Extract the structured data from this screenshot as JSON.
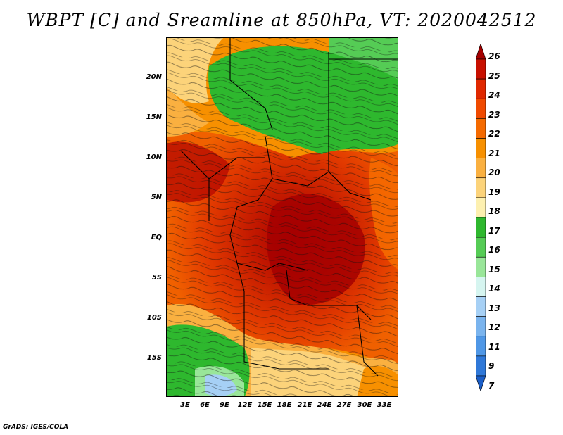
{
  "title": "WBPT [C] and Sreamline at 850hPa, VT: 2020042512",
  "credit": "GrADS: IGES/COLA",
  "lat_ticks": [
    "20N",
    "15N",
    "10N",
    "5N",
    "EQ",
    "5S",
    "10S",
    "15S"
  ],
  "lon_ticks": [
    "3E",
    "6E",
    "9E",
    "12E",
    "15E",
    "18E",
    "21E",
    "24E",
    "27E",
    "30E",
    "33E"
  ],
  "colorbar": {
    "levels": [
      "26",
      "25",
      "24",
      "23",
      "22",
      "21",
      "20",
      "19",
      "18",
      "17",
      "16",
      "15",
      "14",
      "13",
      "12",
      "11",
      "9",
      "7"
    ],
    "colors": [
      "#a50000",
      "#c81000",
      "#e02800",
      "#f04a00",
      "#f56a00",
      "#f79000",
      "#fab040",
      "#fcd37a",
      "#fdf0b0",
      "#2eb82e",
      "#55cc55",
      "#99e699",
      "#d6f5f0",
      "#a6d0f5",
      "#7ab4ee",
      "#4f97e6",
      "#2f78d8",
      "#1a5ec8"
    ]
  },
  "map": {
    "variable": "Wet-bulb potential temperature",
    "units": "C",
    "pressure_level": "850hPa",
    "valid_time": "2020042512"
  }
}
